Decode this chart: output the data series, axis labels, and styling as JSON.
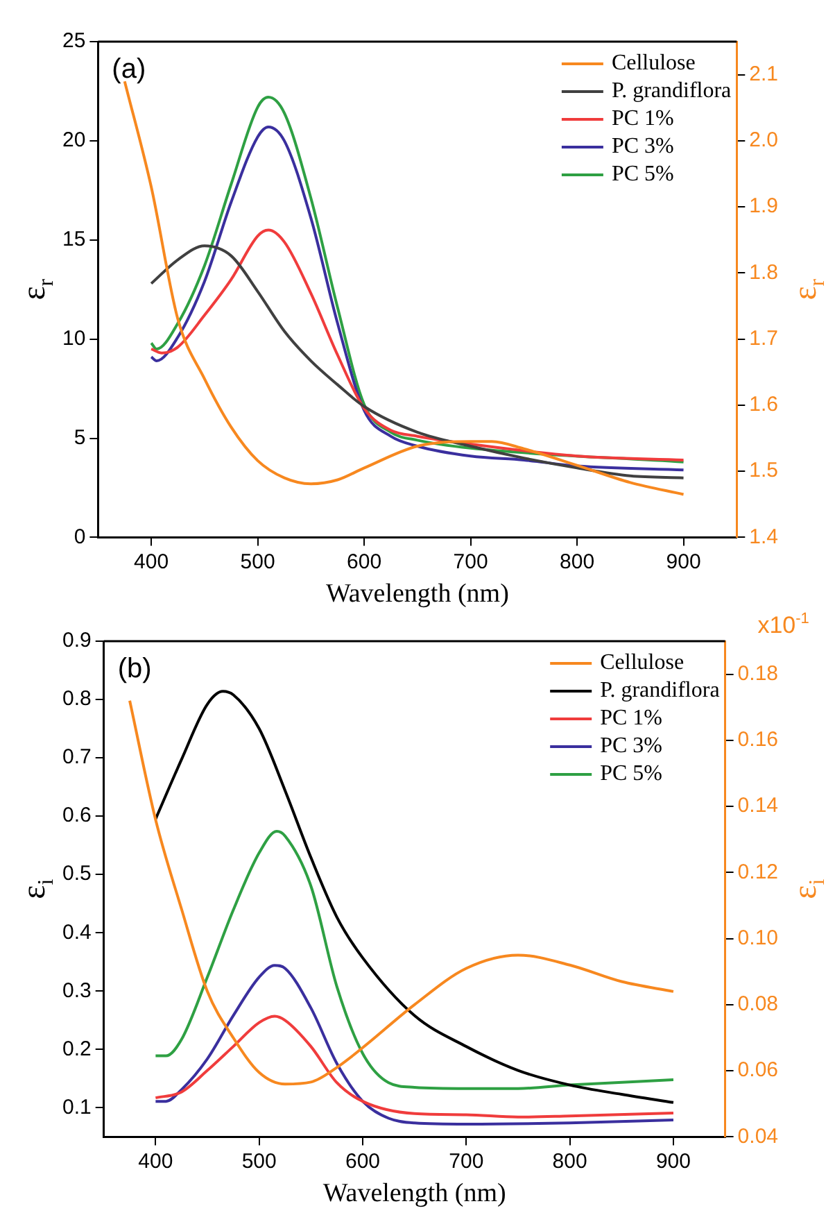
{
  "chart_data": [
    {
      "type": "line",
      "xlabel": "Wavelength (nm)",
      "ylabel": "ε$_{r}$",
      "y2label": "ε$_{r}$",
      "annotations": [
        "(a)"
      ],
      "xlim": [
        350,
        950
      ],
      "xticks": [
        400,
        500,
        600,
        700,
        800,
        900
      ],
      "ylim": [
        0,
        25
      ],
      "yticks": [
        0,
        5,
        10,
        15,
        20,
        25
      ],
      "y2lim": [
        1.4,
        2.15
      ],
      "y2ticks": [
        1.4,
        1.5,
        1.6,
        1.7,
        1.8,
        1.9,
        {
          "value": 2.0,
          "label": "2.0"
        },
        2.1
      ],
      "grid": false,
      "legend": "top right",
      "series": [
        {
          "name": "Cellulose",
          "color": "#f7881f",
          "axis": "y2",
          "x": [
            375,
            400,
            425,
            450,
            475,
            500,
            525,
            550,
            575,
            600,
            650,
            700,
            720,
            750,
            800,
            850,
            900
          ],
          "values": [
            2.09,
            1.93,
            1.73,
            1.64,
            1.567,
            1.516,
            1.49,
            1.481,
            1.487,
            1.505,
            1.538,
            1.545,
            1.545,
            1.534,
            1.509,
            1.483,
            1.465
          ]
        },
        {
          "name": "P. grandiflora",
          "color": "#404040",
          "x": [
            400,
            425,
            450,
            475,
            500,
            525,
            550,
            575,
            600,
            650,
            700,
            750,
            800,
            850,
            900
          ],
          "values": [
            12.8,
            14.0,
            14.7,
            14.2,
            12.4,
            10.4,
            8.9,
            7.7,
            6.6,
            5.3,
            4.6,
            4.0,
            3.5,
            3.1,
            3.0
          ]
        },
        {
          "name": "PC 1%",
          "color": "#f03c3c",
          "x": [
            400,
            410,
            425,
            450,
            475,
            500,
            510,
            525,
            550,
            575,
            600,
            625,
            650,
            700,
            800,
            900
          ],
          "values": [
            9.5,
            9.3,
            9.6,
            11.2,
            13.0,
            15.2,
            15.5,
            14.9,
            12.3,
            9.2,
            6.5,
            5.4,
            5.1,
            4.7,
            4.1,
            3.9
          ]
        },
        {
          "name": "PC 3%",
          "color": "#3a2f9e",
          "x": [
            400,
            405,
            425,
            450,
            475,
            500,
            510,
            525,
            550,
            575,
            600,
            625,
            650,
            700,
            750,
            800,
            900
          ],
          "values": [
            9.1,
            8.9,
            10.1,
            12.9,
            16.9,
            20.2,
            20.7,
            20.0,
            16.1,
            10.8,
            6.4,
            5.1,
            4.6,
            4.1,
            3.9,
            3.6,
            3.4
          ]
        },
        {
          "name": "PC 5%",
          "color": "#2ea043",
          "x": [
            400,
            405,
            425,
            450,
            475,
            500,
            510,
            525,
            550,
            575,
            600,
            625,
            650,
            700,
            900
          ],
          "values": [
            9.8,
            9.5,
            10.8,
            13.7,
            17.8,
            21.7,
            22.2,
            21.4,
            17.1,
            11.6,
            6.7,
            5.3,
            4.9,
            4.5,
            3.8
          ]
        }
      ]
    },
    {
      "type": "line",
      "xlabel": "Wavelength (nm)",
      "ylabel": "ε$_{i}$",
      "y2label": "ε$_{i}$",
      "annotations": [
        "(b)",
        "x10$^{-1}$"
      ],
      "xlim": [
        350,
        950
      ],
      "xticks": [
        400,
        500,
        600,
        700,
        800,
        900
      ],
      "ylim": [
        0.05,
        0.9
      ],
      "yticks": [
        0.1,
        0.2,
        0.3,
        0.4,
        0.5,
        0.6,
        0.7,
        0.8,
        0.9
      ],
      "y2lim": [
        0.04,
        0.19
      ],
      "y2ticks": [
        0.04,
        0.06,
        0.08,
        {
          "value": 0.1,
          "label": "0.10"
        },
        0.12,
        0.14,
        0.16,
        0.18
      ],
      "grid": false,
      "legend": "top right",
      "series": [
        {
          "name": "Cellulose",
          "color": "#f7881f",
          "axis": "y2",
          "x": [
            375,
            400,
            425,
            450,
            475,
            500,
            525,
            550,
            575,
            600,
            650,
            700,
            750,
            800,
            850,
            900
          ],
          "values": [
            0.172,
            0.136,
            0.109,
            0.084,
            0.07,
            0.0595,
            0.056,
            0.0566,
            0.061,
            0.067,
            0.08,
            0.091,
            0.095,
            0.092,
            0.087,
            0.084
          ]
        },
        {
          "name": "P. grandiflora",
          "color": "#000000",
          "x": [
            400,
            425,
            450,
            465,
            475,
            500,
            525,
            550,
            575,
            600,
            650,
            700,
            750,
            800,
            850,
            900
          ],
          "values": [
            0.595,
            0.697,
            0.792,
            0.814,
            0.808,
            0.75,
            0.644,
            0.529,
            0.427,
            0.357,
            0.258,
            0.205,
            0.164,
            0.139,
            0.123,
            0.109
          ]
        },
        {
          "name": "PC 1%",
          "color": "#f03c3c",
          "x": [
            400,
            425,
            450,
            475,
            500,
            515,
            525,
            550,
            575,
            600,
            650,
            700,
            750,
            800,
            900
          ],
          "values": [
            0.117,
            0.127,
            0.164,
            0.205,
            0.246,
            0.257,
            0.25,
            0.205,
            0.143,
            0.111,
            0.09,
            0.088,
            0.084,
            0.086,
            0.091
          ]
        },
        {
          "name": "PC 3%",
          "color": "#3a2f9e",
          "x": [
            400,
            410,
            425,
            450,
            475,
            500,
            515,
            525,
            550,
            575,
            600,
            625,
            650,
            700,
            800,
            900
          ],
          "values": [
            0.111,
            0.111,
            0.131,
            0.184,
            0.258,
            0.324,
            0.344,
            0.339,
            0.271,
            0.176,
            0.111,
            0.082,
            0.074,
            0.072,
            0.074,
            0.079
          ]
        },
        {
          "name": "PC 5%",
          "color": "#2ea043",
          "x": [
            400,
            410,
            425,
            450,
            475,
            500,
            517,
            525,
            550,
            575,
            600,
            625,
            650,
            700,
            750,
            800,
            900
          ],
          "values": [
            0.189,
            0.189,
            0.217,
            0.324,
            0.439,
            0.537,
            0.574,
            0.566,
            0.48,
            0.308,
            0.193,
            0.143,
            0.135,
            0.133,
            0.133,
            0.139,
            0.148
          ]
        }
      ]
    }
  ]
}
